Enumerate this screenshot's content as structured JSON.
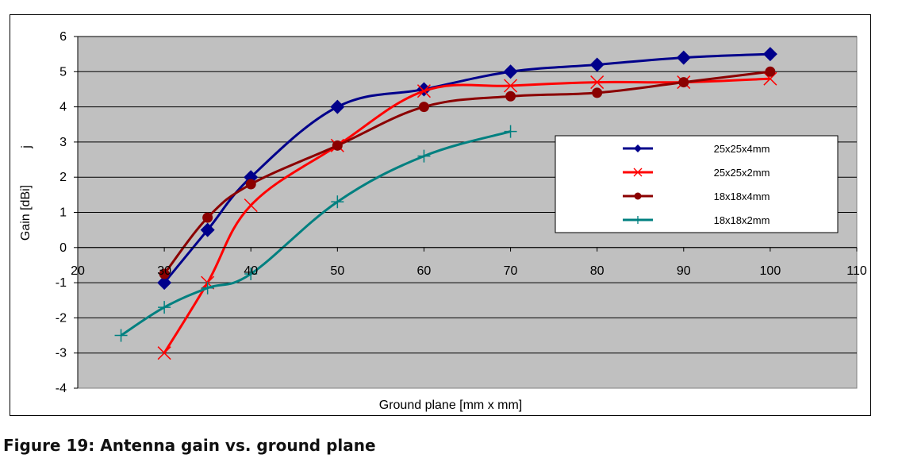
{
  "caption": "Figure 19: Antenna gain vs. ground plane",
  "chart_data": {
    "type": "line",
    "title": "",
    "xlabel": "Ground plane [mm x mm]",
    "ylabel": "Gain [dBi]",
    "ylabel_extra": "j",
    "xlim": [
      20,
      110
    ],
    "ylim": [
      -4,
      6
    ],
    "xticks": [
      20,
      30,
      40,
      50,
      60,
      70,
      80,
      90,
      100,
      110
    ],
    "yticks": [
      -4,
      -3,
      -2,
      -1,
      0,
      1,
      2,
      3,
      4,
      5,
      6
    ],
    "grid": "horizontal",
    "plot_background": "#c0c0c0",
    "legend_position": "right",
    "series": [
      {
        "name": "25x25x4mm",
        "color": "#00008b",
        "marker": "diamond",
        "x": [
          30,
          35,
          40,
          50,
          60,
          70,
          80,
          90,
          100
        ],
        "y": [
          -1.0,
          0.5,
          2.0,
          4.0,
          4.5,
          5.0,
          5.2,
          5.4,
          5.5
        ]
      },
      {
        "name": "25x25x2mm",
        "color": "#ff0000",
        "marker": "x",
        "x": [
          30,
          35,
          40,
          50,
          60,
          70,
          80,
          90,
          100
        ],
        "y": [
          -3.0,
          -1.0,
          1.2,
          2.9,
          4.45,
          4.6,
          4.7,
          4.7,
          4.8
        ]
      },
      {
        "name": "18x18x4mm",
        "color": "#8b0000",
        "marker": "circle",
        "x": [
          30,
          35,
          40,
          50,
          60,
          70,
          80,
          90,
          100
        ],
        "y": [
          -0.75,
          0.85,
          1.8,
          2.9,
          4.0,
          4.3,
          4.4,
          4.7,
          5.0
        ]
      },
      {
        "name": "18x18x2mm",
        "color": "#008080",
        "marker": "plus",
        "x": [
          25,
          30,
          35,
          40,
          50,
          60,
          70
        ],
        "y": [
          -2.5,
          -1.7,
          -1.15,
          -0.75,
          1.3,
          2.6,
          3.3
        ]
      }
    ]
  }
}
